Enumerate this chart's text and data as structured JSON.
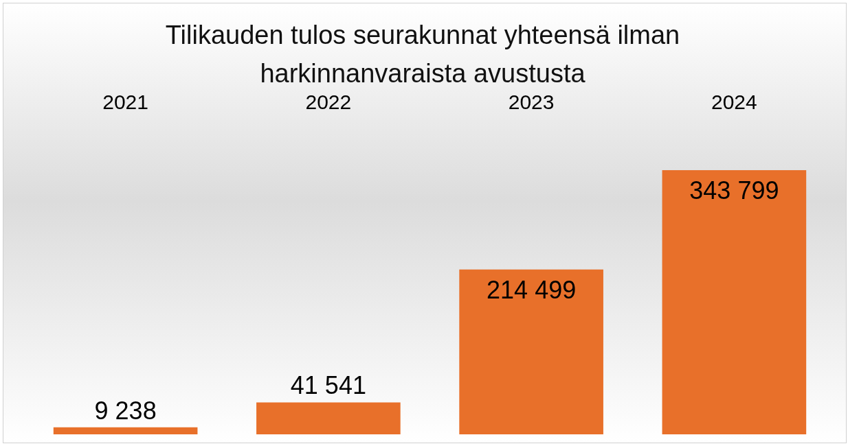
{
  "chart_data": {
    "type": "bar",
    "title": "Tilikauden tulos seurakunnat yhteensä ilman harkinnanvaraista avustusta",
    "categories": [
      "2021",
      "2022",
      "2023",
      "2024"
    ],
    "values": [
      9238,
      41541,
      214499,
      343799
    ],
    "value_labels": [
      "9 238",
      "41 541",
      "214 499",
      "343 799"
    ],
    "color": "#e8702a",
    "grid": false,
    "legend": false
  }
}
